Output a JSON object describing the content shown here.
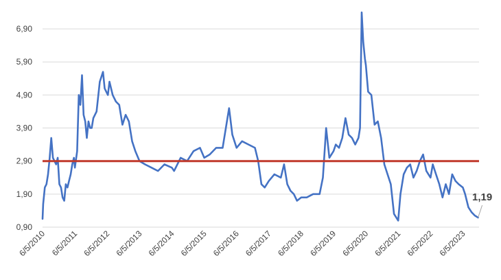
{
  "chart_data": {
    "type": "line",
    "title": "",
    "xlabel": "",
    "ylabel": "",
    "ylim": [
      0.9,
      7.4
    ],
    "y_ticks": [
      {
        "value": 0.9,
        "label": "0,90"
      },
      {
        "value": 1.9,
        "label": "1,90"
      },
      {
        "value": 2.9,
        "label": "2,90"
      },
      {
        "value": 3.9,
        "label": "3,90"
      },
      {
        "value": 4.9,
        "label": "4,90"
      },
      {
        "value": 5.9,
        "label": "5,90"
      },
      {
        "value": 6.9,
        "label": "6,90"
      }
    ],
    "x_tick_labels": [
      "6/5/2010",
      "6/5/2011",
      "6/5/2012",
      "6/5/2013",
      "6/5/2014",
      "6/5/2015",
      "6/5/2016",
      "6/5/2017",
      "6/5/2018",
      "6/5/2019",
      "6/5/2020",
      "6/5/2021",
      "6/5/2022",
      "6/5/2023"
    ],
    "grid": true,
    "legend": "none",
    "series": [
      {
        "color": "#4472C4",
        "x": [
          2010.43,
          2010.45,
          2010.5,
          2010.55,
          2010.6,
          2010.65,
          2010.7,
          2010.75,
          2010.8,
          2010.85,
          2010.9,
          2010.95,
          2011.0,
          2011.05,
          2011.1,
          2011.15,
          2011.2,
          2011.25,
          2011.3,
          2011.35,
          2011.4,
          2011.43,
          2011.5,
          2011.55,
          2011.6,
          2011.65,
          2011.7,
          2011.75,
          2011.8,
          2011.85,
          2011.9,
          2011.95,
          2012.0,
          2012.1,
          2012.2,
          2012.3,
          2012.35,
          2012.4,
          2012.45,
          2012.5,
          2012.6,
          2012.7,
          2012.8,
          2012.9,
          2013.0,
          2013.1,
          2013.2,
          2013.3,
          2013.43,
          2013.6,
          2013.8,
          2014.0,
          2014.2,
          2014.43,
          2014.5,
          2014.7,
          2014.9,
          2015.1,
          2015.3,
          2015.43,
          2015.6,
          2015.8,
          2016.0,
          2016.1,
          2016.2,
          2016.3,
          2016.43,
          2016.6,
          2016.8,
          2017.0,
          2017.1,
          2017.2,
          2017.3,
          2017.43,
          2017.6,
          2017.8,
          2017.9,
          2018.0,
          2018.1,
          2018.2,
          2018.3,
          2018.43,
          2018.6,
          2018.8,
          2019.0,
          2019.1,
          2019.2,
          2019.3,
          2019.43,
          2019.5,
          2019.6,
          2019.7,
          2019.8,
          2019.9,
          2020.0,
          2020.1,
          2020.2,
          2020.25,
          2020.3,
          2020.35,
          2020.4,
          2020.43,
          2020.5,
          2020.6,
          2020.7,
          2020.8,
          2020.9,
          2021.0,
          2021.1,
          2021.2,
          2021.3,
          2021.43,
          2021.5,
          2021.6,
          2021.7,
          2021.8,
          2021.9,
          2022.0,
          2022.1,
          2022.2,
          2022.3,
          2022.43,
          2022.5,
          2022.6,
          2022.7,
          2022.8,
          2022.9,
          2023.0,
          2023.1,
          2023.2,
          2023.3,
          2023.43,
          2023.5,
          2023.6,
          2023.7,
          2023.8,
          2023.9
        ],
        "values": [
          1.15,
          1.6,
          2.1,
          2.2,
          2.5,
          3.0,
          3.6,
          3.0,
          2.9,
          2.8,
          3.0,
          2.2,
          2.1,
          1.8,
          1.7,
          2.2,
          2.1,
          2.3,
          2.5,
          2.8,
          3.0,
          2.7,
          3.2,
          4.9,
          4.6,
          5.5,
          4.3,
          4.1,
          3.6,
          4.1,
          3.9,
          3.9,
          4.2,
          4.4,
          5.3,
          5.6,
          5.1,
          5.0,
          4.9,
          5.3,
          4.9,
          4.7,
          4.6,
          4.0,
          4.3,
          4.1,
          3.5,
          3.2,
          2.9,
          2.8,
          2.7,
          2.6,
          2.8,
          2.7,
          2.6,
          3.0,
          2.9,
          3.2,
          3.3,
          3.0,
          3.1,
          3.3,
          3.3,
          3.9,
          4.5,
          3.7,
          3.3,
          3.5,
          3.4,
          3.3,
          2.9,
          2.2,
          2.1,
          2.3,
          2.5,
          2.4,
          2.8,
          2.2,
          2.0,
          1.9,
          1.7,
          1.8,
          1.8,
          1.9,
          1.9,
          2.4,
          3.9,
          3.0,
          3.2,
          3.4,
          3.3,
          3.6,
          4.2,
          3.7,
          3.6,
          3.4,
          3.6,
          3.9,
          7.4,
          6.5,
          6.0,
          5.8,
          5.0,
          4.9,
          4.0,
          4.1,
          3.6,
          2.8,
          2.5,
          2.2,
          1.3,
          1.1,
          1.9,
          2.5,
          2.7,
          2.8,
          2.4,
          2.6,
          2.9,
          3.1,
          2.6,
          2.4,
          2.8,
          2.5,
          2.2,
          1.8,
          2.2,
          1.9,
          2.5,
          2.3,
          2.2,
          2.1,
          1.9,
          1.5,
          1.35,
          1.25,
          1.19
        ]
      }
    ],
    "reference_line": {
      "value": 2.9,
      "color": "#C0392B"
    },
    "last_value_label": "1,19"
  }
}
